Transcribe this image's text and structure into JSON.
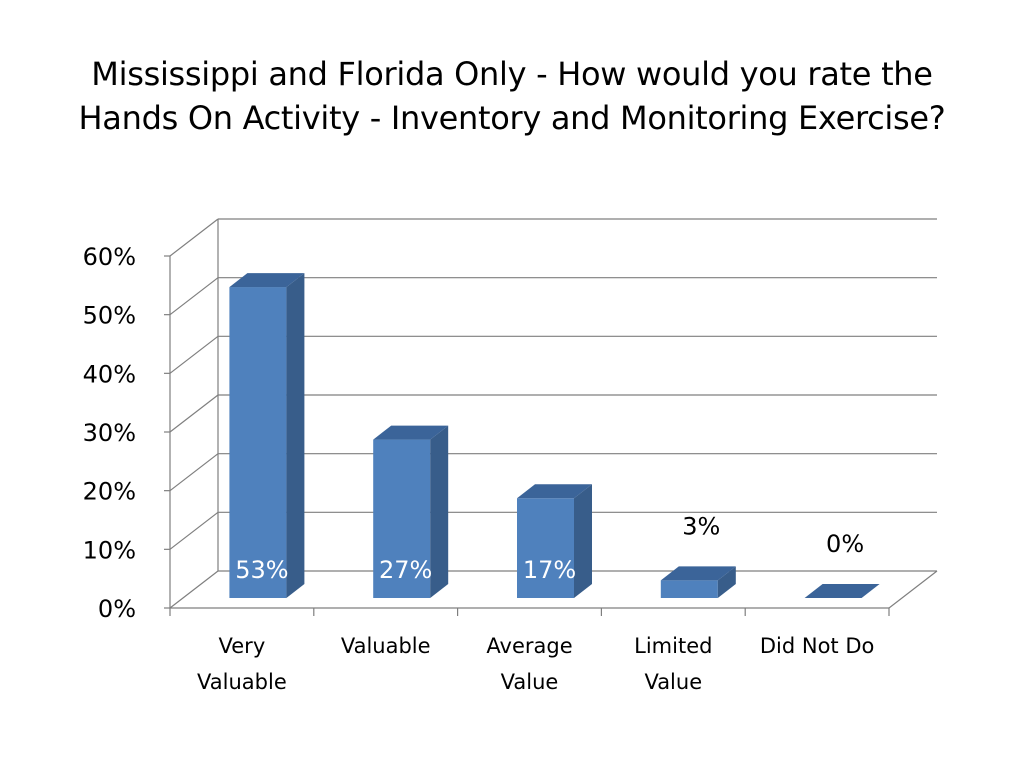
{
  "title_lines": [
    "Mississippi and Florida Only - How would you rate the",
    "Hands On Activity - Inventory and Monitoring Exercise?"
  ],
  "colors": {
    "bar_front": "#4f81bd",
    "bar_side": "#385d8a",
    "bar_top": "#3b6499",
    "grid": "#7f7f7f",
    "label_inside": "#ffffff",
    "label_outside": "#000000"
  },
  "chart_data": {
    "type": "bar",
    "style": "3d-column",
    "title": "Mississippi and Florida Only - How would you rate the Hands On Activity - Inventory and Monitoring Exercise?",
    "categories": [
      [
        "Very",
        "Valuable"
      ],
      [
        "Valuable"
      ],
      [
        "Average",
        "Value"
      ],
      [
        "Limited",
        "Value"
      ],
      [
        "Did Not Do"
      ]
    ],
    "values": [
      53,
      27,
      17,
      3,
      0
    ],
    "data_labels": [
      "53%",
      "27%",
      "17%",
      "3%",
      "0%"
    ],
    "yticks": [
      "0%",
      "10%",
      "20%",
      "30%",
      "40%",
      "50%",
      "60%"
    ],
    "ylim": [
      0,
      60
    ],
    "grid": true,
    "legend": "none",
    "xlabel": "",
    "ylabel": ""
  }
}
